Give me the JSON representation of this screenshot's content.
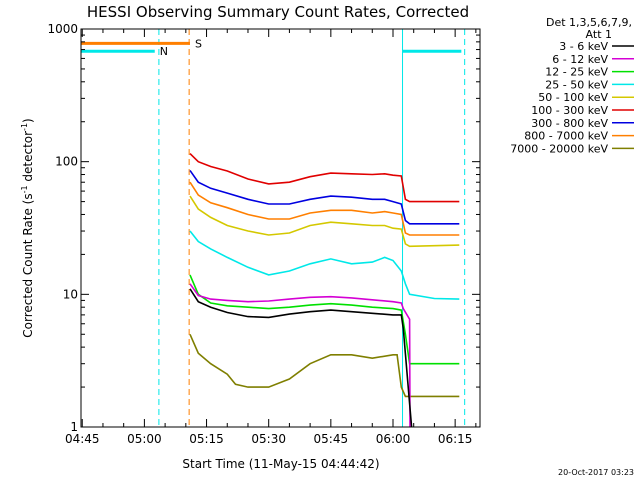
{
  "chart_data": {
    "type": "line",
    "title": "HESSI Observing Summary Count Rates, Corrected",
    "xlabel": "Start Time (11-May-15 04:44:42)",
    "ylabel": "Corrected Count Rate (s",
    "ylabel_sup1": "-1",
    "ylabel_mid": " detector",
    "ylabel_sup2": "-1",
    "ylabel_end": ")",
    "yscale": "log",
    "ylim": [
      1,
      1000
    ],
    "xlim_min": [
      284.7,
      381.0
    ],
    "y_ticks": [
      {
        "value": 1,
        "label": "1"
      },
      {
        "value": 10,
        "label": "10"
      },
      {
        "value": 100,
        "label": "100"
      },
      {
        "value": 1000,
        "label": "1000"
      }
    ],
    "x_ticks": [
      {
        "value": 285,
        "label": "04:45"
      },
      {
        "value": 300,
        "label": "05:00"
      },
      {
        "value": 315,
        "label": "05:15"
      },
      {
        "value": 330,
        "label": "05:30"
      },
      {
        "value": 345,
        "label": "05:45"
      },
      {
        "value": 360,
        "label": "06:00"
      },
      {
        "value": 375,
        "label": "06:15"
      }
    ],
    "legend_header": [
      "Det 1,3,5,6,7,9,",
      "Att 1"
    ],
    "series": [
      {
        "name": "3 - 6 keV",
        "color": "#000000",
        "points": [
          [
            311,
            11
          ],
          [
            313,
            8.8
          ],
          [
            316,
            8.0
          ],
          [
            320,
            7.3
          ],
          [
            325,
            6.8
          ],
          [
            330,
            6.7
          ],
          [
            335,
            7.1
          ],
          [
            340,
            7.4
          ],
          [
            345,
            7.6
          ],
          [
            350,
            7.4
          ],
          [
            355,
            7.2
          ],
          [
            360,
            7.0
          ],
          [
            362,
            7.0
          ],
          [
            362.5,
            5.5
          ],
          [
            364,
            1.5
          ],
          [
            364.5,
            1
          ]
        ]
      },
      {
        "name": "6 - 12 keV",
        "color": "#d400d4",
        "points": [
          [
            311,
            12
          ],
          [
            313,
            9.8
          ],
          [
            316,
            9.2
          ],
          [
            320,
            9.0
          ],
          [
            325,
            8.8
          ],
          [
            330,
            8.9
          ],
          [
            335,
            9.2
          ],
          [
            340,
            9.5
          ],
          [
            345,
            9.6
          ],
          [
            350,
            9.4
          ],
          [
            355,
            9.1
          ],
          [
            360,
            8.8
          ],
          [
            362,
            8.6
          ],
          [
            362.5,
            7.8
          ],
          [
            364,
            6.5
          ],
          [
            364.1,
            1
          ]
        ]
      },
      {
        "name": "12 - 25 keV",
        "color": "#00e000",
        "points": [
          [
            311,
            14
          ],
          [
            313,
            10
          ],
          [
            316,
            8.6
          ],
          [
            320,
            8.2
          ],
          [
            325,
            8.0
          ],
          [
            330,
            7.8
          ],
          [
            335,
            8.0
          ],
          [
            340,
            8.3
          ],
          [
            345,
            8.5
          ],
          [
            350,
            8.3
          ],
          [
            355,
            8.0
          ],
          [
            360,
            7.8
          ],
          [
            362,
            7.6
          ],
          [
            363,
            5
          ],
          [
            364,
            3
          ],
          [
            370,
            3
          ],
          [
            376,
            3
          ]
        ]
      },
      {
        "name": "25 - 50 keV",
        "color": "#00e8e8",
        "points": [
          [
            311,
            30
          ],
          [
            313,
            25
          ],
          [
            316,
            22
          ],
          [
            320,
            19
          ],
          [
            325,
            16
          ],
          [
            330,
            14
          ],
          [
            335,
            15
          ],
          [
            340,
            17
          ],
          [
            345,
            18.5
          ],
          [
            350,
            17
          ],
          [
            355,
            17.5
          ],
          [
            358,
            19
          ],
          [
            360,
            18
          ],
          [
            362,
            15
          ],
          [
            363,
            12
          ],
          [
            364,
            10
          ],
          [
            370,
            9.3
          ],
          [
            376,
            9.2
          ]
        ]
      },
      {
        "name": "50 - 100 keV",
        "color": "#d4c800",
        "points": [
          [
            311,
            55
          ],
          [
            313,
            44
          ],
          [
            316,
            38
          ],
          [
            320,
            33
          ],
          [
            325,
            30
          ],
          [
            330,
            28
          ],
          [
            335,
            29
          ],
          [
            340,
            33
          ],
          [
            345,
            35
          ],
          [
            350,
            34
          ],
          [
            355,
            33
          ],
          [
            358,
            33
          ],
          [
            360,
            31.5
          ],
          [
            362,
            31
          ],
          [
            363,
            24
          ],
          [
            364,
            23
          ],
          [
            376,
            23.5
          ]
        ]
      },
      {
        "name": "100 - 300 keV",
        "color": "#e00000",
        "points": [
          [
            311,
            115
          ],
          [
            313,
            100
          ],
          [
            316,
            92
          ],
          [
            320,
            85
          ],
          [
            325,
            74
          ],
          [
            330,
            68
          ],
          [
            335,
            70
          ],
          [
            340,
            77
          ],
          [
            345,
            82
          ],
          [
            350,
            81
          ],
          [
            355,
            80
          ],
          [
            358,
            81
          ],
          [
            360,
            79
          ],
          [
            362,
            78
          ],
          [
            363,
            52
          ],
          [
            364,
            50
          ],
          [
            376,
            50
          ]
        ]
      },
      {
        "name": "300 - 800 keV",
        "color": "#0000e0",
        "points": [
          [
            311,
            86
          ],
          [
            313,
            70
          ],
          [
            316,
            63
          ],
          [
            320,
            58
          ],
          [
            325,
            52
          ],
          [
            330,
            48
          ],
          [
            335,
            48
          ],
          [
            340,
            52
          ],
          [
            345,
            55
          ],
          [
            350,
            54
          ],
          [
            355,
            52
          ],
          [
            358,
            52
          ],
          [
            360,
            50
          ],
          [
            362,
            48
          ],
          [
            363,
            36
          ],
          [
            364,
            34
          ],
          [
            376,
            34
          ]
        ]
      },
      {
        "name": "800 - 7000 keV",
        "color": "#ff7f00",
        "points": [
          [
            311,
            70
          ],
          [
            313,
            56
          ],
          [
            316,
            49
          ],
          [
            320,
            45
          ],
          [
            325,
            40
          ],
          [
            330,
            37
          ],
          [
            335,
            37
          ],
          [
            340,
            41
          ],
          [
            345,
            43
          ],
          [
            350,
            43
          ],
          [
            355,
            41
          ],
          [
            358,
            42
          ],
          [
            360,
            41
          ],
          [
            362,
            40
          ],
          [
            363,
            29
          ],
          [
            364,
            28
          ],
          [
            376,
            28
          ]
        ]
      },
      {
        "name": "7000 - 20000 keV",
        "color": "#7f7f00",
        "points": [
          [
            311,
            5
          ],
          [
            313,
            3.6
          ],
          [
            316,
            3.0
          ],
          [
            320,
            2.5
          ],
          [
            322,
            2.1
          ],
          [
            325,
            2.0
          ],
          [
            330,
            2.0
          ],
          [
            335,
            2.3
          ],
          [
            340,
            3
          ],
          [
            345,
            3.5
          ],
          [
            350,
            3.5
          ],
          [
            355,
            3.3
          ],
          [
            360,
            3.5
          ],
          [
            361,
            3.5
          ],
          [
            362,
            2
          ],
          [
            363,
            1.7
          ],
          [
            376,
            1.7
          ]
        ]
      }
    ],
    "flag_bars": [
      {
        "label": "S",
        "color": "#ff7f00",
        "x_start": 284.7,
        "x_end": 311.0,
        "y": 780
      },
      {
        "label": "N",
        "color": "#00e8e8",
        "x_start": 284.7,
        "x_end": 302.5,
        "y": 680
      },
      {
        "label": "",
        "color": "#00e8e8",
        "x_start": 362.3,
        "x_end": 376.5,
        "y": 680
      }
    ],
    "vertical_markers": [
      {
        "color": "#00e8e8",
        "style": "dashed",
        "x": 303.5
      },
      {
        "color": "#ff7f00",
        "style": "dashed",
        "x": 310.8
      },
      {
        "color": "#00e8e8",
        "style": "solid",
        "x": 362.3
      },
      {
        "color": "#00e8e8",
        "style": "dashed",
        "x": 377.3
      }
    ],
    "timestamp": "20-Oct-2017 03:23"
  }
}
